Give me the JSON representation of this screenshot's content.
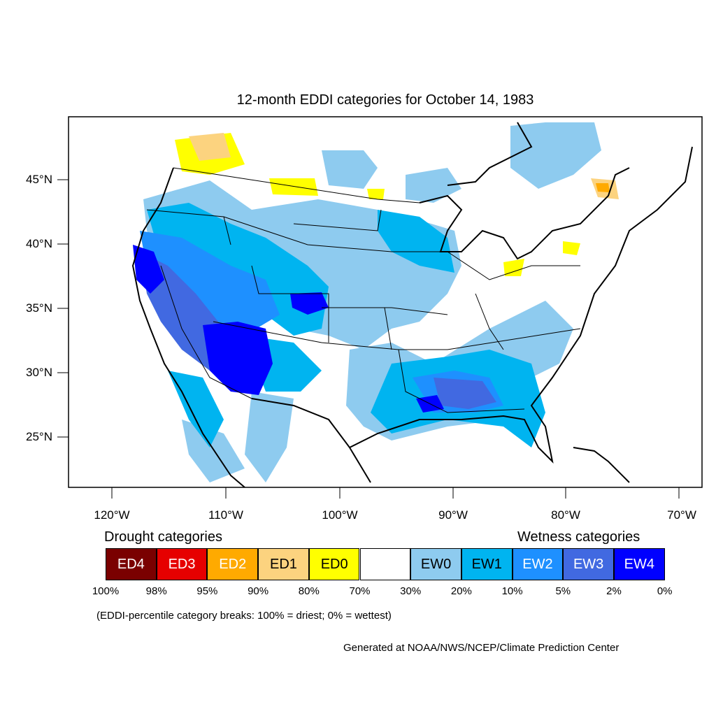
{
  "title": "12-month EDDI categories for October 14, 1983",
  "lat_labels": [
    "45°N",
    "40°N",
    "35°N",
    "30°N",
    "25°N"
  ],
  "lon_labels": [
    "120°W",
    "110°W",
    "100°W",
    "90°W",
    "80°W",
    "70°W"
  ],
  "legend": {
    "drought_heading": "Drought categories",
    "wetness_heading": "Wetness categories",
    "categories": [
      {
        "label": "ED4",
        "color": "#7a0000",
        "text_color": "#ffffff"
      },
      {
        "label": "ED3",
        "color": "#e60000",
        "text_color": "#ffffff"
      },
      {
        "label": "ED2",
        "color": "#ffaa00",
        "text_color": "#ffffff"
      },
      {
        "label": "ED1",
        "color": "#fcd37f",
        "text_color": "#000000"
      },
      {
        "label": "ED0",
        "color": "#ffff00",
        "text_color": "#000000"
      },
      {
        "label": "",
        "color": "#ffffff",
        "text_color": "#000000"
      },
      {
        "label": "EW0",
        "color": "#8ecbef",
        "text_color": "#000000"
      },
      {
        "label": "EW1",
        "color": "#00b4f0",
        "text_color": "#000000"
      },
      {
        "label": "EW2",
        "color": "#1e90ff",
        "text_color": "#ffffff"
      },
      {
        "label": "EW3",
        "color": "#4169e1",
        "text_color": "#ffffff"
      },
      {
        "label": "EW4",
        "color": "#0000ff",
        "text_color": "#ffffff"
      }
    ],
    "breaks": [
      "100%",
      "98%",
      "95%",
      "90%",
      "80%",
      "70%",
      "30%",
      "20%",
      "10%",
      "5%",
      "2%",
      "0%"
    ],
    "note": "(EDDI-percentile category breaks: 100% = driest; 0% = wettest)"
  },
  "credit": "Generated at NOAA/NWS/NCEP/Climate Prediction Center"
}
